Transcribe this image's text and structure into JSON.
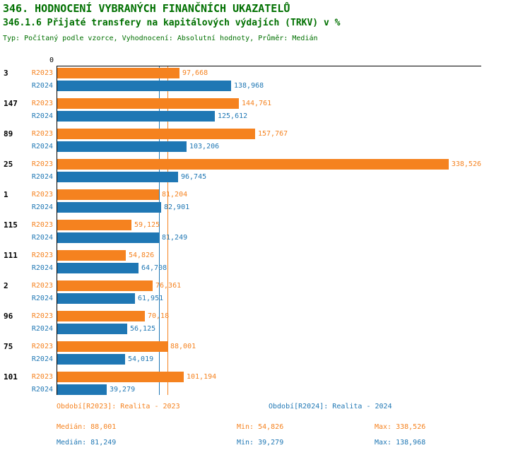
{
  "header": {
    "title": "346. HODNOCENÍ VYBRANÝCH FINANČNÍCH UKAZATELŮ",
    "subtitle": "346.1.6 Přijaté transfery na kapitálových výdajích (TRKV) v %",
    "meta": "Typ: Počítaný podle vzorce, Vyhodnocení: Absolutní hodnoty, Průměr: Medián"
  },
  "colors": {
    "heading": "#007000",
    "r2023": "#f5821f",
    "r2024": "#1f77b4",
    "axis": "#000000"
  },
  "chart_data": {
    "type": "bar",
    "orientation": "horizontal",
    "title": "346.1.6 Přijaté transfery na kapitálových výdajích (TRKV) v %",
    "x_origin_label": "0",
    "xlim": [
      0,
      338.526
    ],
    "grid": false,
    "categories": [
      "3",
      "147",
      "89",
      "25",
      "1",
      "115",
      "111",
      "2",
      "96",
      "75",
      "101"
    ],
    "series": [
      {
        "name": "R2023",
        "color": "#f5821f",
        "values": [
          97.668,
          144.761,
          157.767,
          338.526,
          81.204,
          59.125,
          54.826,
          76.361,
          70.18,
          88.001,
          101.194
        ],
        "labels": [
          "97,668",
          "144,761",
          "157,767",
          "338,526",
          "81,204",
          "59,125",
          "54,826",
          "76,361",
          "70,18",
          "88,001",
          "101,194"
        ],
        "median": 88.001
      },
      {
        "name": "R2024",
        "color": "#1f77b4",
        "values": [
          138.968,
          125.612,
          103.206,
          96.745,
          82.901,
          81.249,
          64.708,
          61.951,
          56.125,
          54.019,
          39.279
        ],
        "labels": [
          "138,968",
          "125,612",
          "103,206",
          "96,745",
          "82,901",
          "81,249",
          "64,708",
          "61,951",
          "56,125",
          "54,019",
          "39,279"
        ],
        "median": 81.249
      }
    ],
    "median_lines": [
      {
        "series": "R2024",
        "value": 81.249,
        "color": "#1f77b4"
      },
      {
        "series": "R2023",
        "value": 88.001,
        "color": "#f5821f"
      }
    ]
  },
  "legend": {
    "r2023": {
      "period": "Období[R2023]: Realita - 2023",
      "median": "Medián: 88,001",
      "min": "Min: 54,826",
      "max": "Max: 338,526"
    },
    "r2024": {
      "period": "Období[R2024]: Realita - 2024",
      "median": "Medián: 81,249",
      "min": "Min: 39,279",
      "max": "Max: 138,968"
    }
  }
}
